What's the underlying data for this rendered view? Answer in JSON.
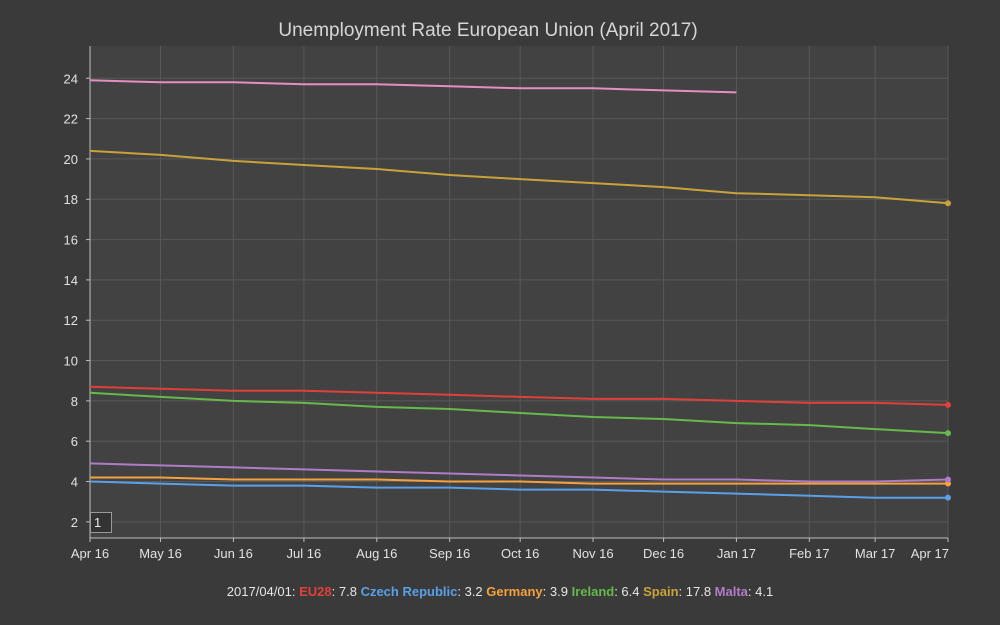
{
  "chart_data": {
    "type": "line",
    "title": "Unemployment Rate European Union (April 2017)",
    "x": [
      "2016-04-01",
      "2016-05-01",
      "2016-06-01",
      "2016-07-01",
      "2016-08-01",
      "2016-09-01",
      "2016-10-01",
      "2016-11-01",
      "2016-12-01",
      "2017-01-01",
      "2017-02-01",
      "2017-03-01",
      "2017-04-01"
    ],
    "x_tick_labels": [
      "Apr 16",
      "May 16",
      "Jun 16",
      "Jul 16",
      "Aug 16",
      "Sep 16",
      "Oct 16",
      "Nov 16",
      "Dec 16",
      "Jan 17",
      "Feb 17",
      "Mar 17",
      "Apr 17"
    ],
    "y_ticks": [
      2,
      4,
      6,
      8,
      10,
      12,
      14,
      16,
      18,
      20,
      22,
      24
    ],
    "ylim": [
      1.2,
      25.6
    ],
    "grid": true,
    "legend_position": "bottom",
    "series": [
      {
        "name": "EU28",
        "color": "#e0403a",
        "values": [
          8.7,
          8.6,
          8.5,
          8.5,
          8.4,
          8.3,
          8.2,
          8.1,
          8.1,
          8.0,
          7.9,
          7.9,
          7.8
        ]
      },
      {
        "name": "Czech Republic",
        "color": "#5aa0e8",
        "values": [
          4.0,
          3.9,
          3.8,
          3.8,
          3.7,
          3.7,
          3.6,
          3.6,
          3.5,
          3.4,
          3.3,
          3.2,
          3.2
        ]
      },
      {
        "name": "Germany",
        "color": "#f4a13e",
        "values": [
          4.2,
          4.2,
          4.1,
          4.1,
          4.1,
          4.0,
          4.0,
          3.9,
          3.9,
          3.9,
          3.9,
          3.9,
          3.9
        ]
      },
      {
        "name": "Ireland",
        "color": "#66b94a",
        "values": [
          8.4,
          8.2,
          8.0,
          7.9,
          7.7,
          7.6,
          7.4,
          7.2,
          7.1,
          6.9,
          6.8,
          6.6,
          6.4
        ]
      },
      {
        "name": "Spain",
        "color": "#c9a33a",
        "values": [
          20.4,
          20.2,
          19.9,
          19.7,
          19.5,
          19.2,
          19.0,
          18.8,
          18.6,
          18.3,
          18.2,
          18.1,
          17.8
        ]
      },
      {
        "name": "Malta",
        "color": "#b07cc8",
        "values": [
          4.9,
          4.8,
          4.7,
          4.6,
          4.5,
          4.4,
          4.3,
          4.2,
          4.1,
          4.1,
          4.0,
          4.0,
          4.1
        ]
      },
      {
        "name": "",
        "color": "#e58fc0",
        "values": [
          23.9,
          23.8,
          23.8,
          23.7,
          23.7,
          23.6,
          23.5,
          23.5,
          23.4,
          23.3,
          null,
          null,
          null
        ]
      }
    ]
  },
  "legend": {
    "date": "2017/04/01",
    "entries": [
      {
        "name": "EU28",
        "value": "7.8",
        "color": "#e0403a"
      },
      {
        "name": "Czech Republic",
        "value": "3.2",
        "color": "#5aa0e8"
      },
      {
        "name": "Germany",
        "value": "3.9",
        "color": "#f4a13e"
      },
      {
        "name": "Ireland",
        "value": "6.4",
        "color": "#66b94a"
      },
      {
        "name": "Spain",
        "value": "17.8",
        "color": "#c9a33a"
      },
      {
        "name": "Malta",
        "value": "4.1",
        "color": "#b07cc8"
      }
    ]
  },
  "controls": {
    "roll_period": "1"
  }
}
